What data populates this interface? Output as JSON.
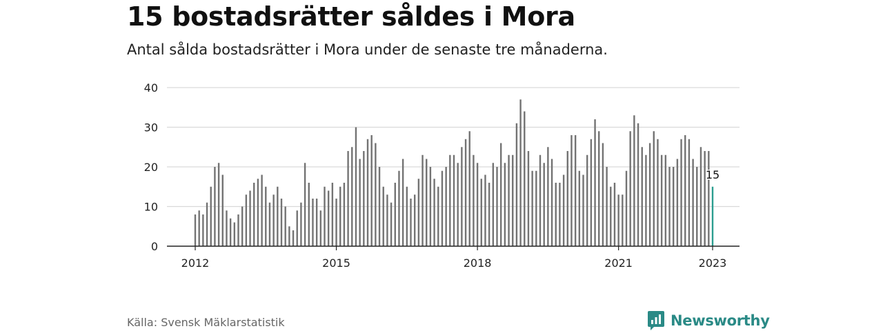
{
  "header": {
    "title": "15 bostadsrätter såldes i Mora",
    "subtitle": "Antal sålda bostadsrätter i Mora under de senaste tre månaderna."
  },
  "footer": {
    "source": "Källa: Svensk Mäklarstatistik",
    "brand": "Newsworthy"
  },
  "colors": {
    "bar": "#737373",
    "highlight": "#2a9d8f",
    "grid": "#d9d9d9",
    "brand": "#2a8a86"
  },
  "chart_data": {
    "type": "bar",
    "title": "15 bostadsrätter såldes i Mora",
    "subtitle": "Antal sålda bostadsrätter i Mora under de senaste tre månaderna.",
    "xlabel": "",
    "ylabel": "",
    "ylim": [
      0,
      40
    ],
    "yticks": [
      0,
      10,
      20,
      30,
      40
    ],
    "x_tick_labels": [
      "2012",
      "2015",
      "2018",
      "2021",
      "2023"
    ],
    "grid": true,
    "start": "2012-01",
    "end": "2023-01",
    "highlight_label": "15",
    "values": [
      8,
      9,
      8,
      11,
      15,
      20,
      21,
      18,
      9,
      7,
      6,
      8,
      10,
      13,
      14,
      16,
      17,
      18,
      15,
      11,
      13,
      15,
      12,
      10,
      5,
      4,
      9,
      11,
      21,
      16,
      12,
      12,
      9,
      15,
      14,
      16,
      12,
      15,
      16,
      24,
      25,
      30,
      22,
      24,
      27,
      28,
      26,
      20,
      15,
      13,
      11,
      16,
      19,
      22,
      15,
      12,
      13,
      17,
      23,
      22,
      20,
      17,
      15,
      19,
      20,
      23,
      23,
      21,
      25,
      27,
      29,
      23,
      21,
      17,
      18,
      16,
      21,
      20,
      26,
      21,
      23,
      23,
      31,
      37,
      34,
      24,
      19,
      19,
      23,
      21,
      25,
      22,
      16,
      16,
      18,
      24,
      28,
      28,
      19,
      18,
      23,
      27,
      32,
      29,
      26,
      20,
      15,
      16,
      13,
      13,
      19,
      29,
      33,
      31,
      25,
      23,
      26,
      29,
      27,
      23,
      23,
      20,
      20,
      22,
      27,
      28,
      27,
      22,
      20,
      25,
      24,
      24,
      15
    ]
  }
}
